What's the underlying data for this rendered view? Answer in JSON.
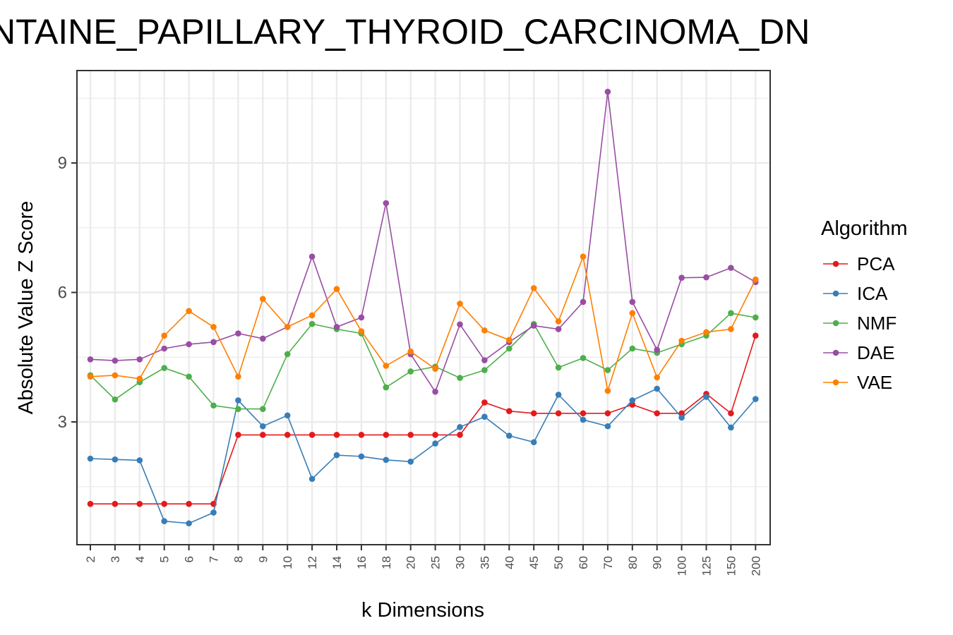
{
  "chart_data": {
    "type": "line",
    "title": "NTAINE_PAPILLARY_THYROID_CARCINOMA_DN",
    "xlabel": "k Dimensions",
    "ylabel": "Absolute Value Z Score",
    "categories": [
      "2",
      "3",
      "4",
      "5",
      "6",
      "7",
      "8",
      "9",
      "10",
      "12",
      "14",
      "16",
      "18",
      "20",
      "25",
      "30",
      "35",
      "40",
      "45",
      "50",
      "60",
      "70",
      "80",
      "90",
      "100",
      "125",
      "150",
      "200"
    ],
    "ylim": [
      0.3,
      11.2
    ],
    "yticks": [
      3,
      6,
      9
    ],
    "grid": true,
    "legend_title": "Algorithm",
    "legend_position": "right",
    "series": [
      {
        "name": "PCA",
        "color": "#e41a1c",
        "values": [
          1.1,
          1.1,
          1.1,
          1.1,
          1.1,
          1.1,
          2.7,
          2.7,
          2.7,
          2.7,
          2.7,
          2.7,
          2.7,
          2.7,
          2.7,
          2.7,
          3.45,
          3.25,
          3.2,
          3.2,
          3.2,
          3.2,
          3.4,
          3.2,
          3.2,
          3.65,
          3.2,
          5.0
        ]
      },
      {
        "name": "ICA",
        "color": "#377eb8",
        "values": [
          2.15,
          2.13,
          2.11,
          0.7,
          0.65,
          0.9,
          3.5,
          2.9,
          3.15,
          1.68,
          2.23,
          2.2,
          2.12,
          2.08,
          2.5,
          2.88,
          3.12,
          2.68,
          2.53,
          3.63,
          3.05,
          2.9,
          3.5,
          3.77,
          3.1,
          3.58,
          2.87,
          3.53
        ]
      },
      {
        "name": "NMF",
        "color": "#4daf4a",
        "values": [
          4.08,
          3.52,
          3.92,
          4.25,
          4.05,
          3.38,
          3.3,
          3.3,
          4.57,
          5.27,
          5.15,
          5.05,
          3.8,
          4.17,
          4.28,
          4.02,
          4.2,
          4.7,
          5.27,
          4.26,
          4.48,
          4.2,
          4.7,
          4.6,
          4.8,
          5.0,
          5.52,
          5.42
        ]
      },
      {
        "name": "DAE",
        "color": "#984ea3",
        "values": [
          4.45,
          4.42,
          4.45,
          4.7,
          4.8,
          4.85,
          5.05,
          4.93,
          5.2,
          6.83,
          5.2,
          5.42,
          8.07,
          4.57,
          3.7,
          5.26,
          4.43,
          4.85,
          5.23,
          5.15,
          5.78,
          10.65,
          5.78,
          4.67,
          6.34,
          6.35,
          6.57,
          6.24
        ]
      },
      {
        "name": "VAE",
        "color": "#ff7f00",
        "values": [
          4.05,
          4.08,
          4.0,
          5.0,
          5.57,
          5.2,
          4.05,
          5.85,
          5.2,
          5.47,
          6.08,
          5.1,
          4.3,
          4.63,
          4.23,
          5.74,
          5.12,
          4.9,
          6.1,
          5.33,
          6.83,
          3.72,
          5.52,
          4.03,
          4.88,
          5.08,
          5.15,
          6.3
        ]
      }
    ]
  }
}
